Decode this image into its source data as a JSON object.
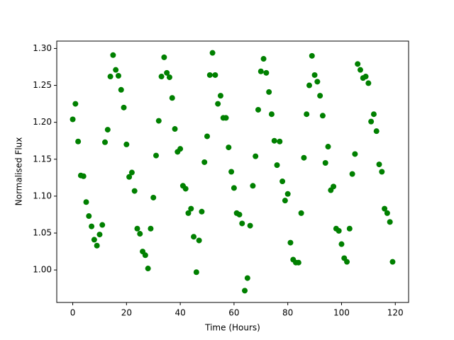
{
  "chart_data": {
    "type": "scatter",
    "x_label": "Time (Hours)",
    "y_label": "Normalised Flux",
    "color": "#008000",
    "x": [
      0,
      1,
      2,
      3,
      4,
      5,
      6,
      7,
      8,
      9,
      10,
      11,
      12,
      13,
      14,
      15,
      16,
      17,
      18,
      19,
      20,
      21,
      22,
      23,
      24,
      25,
      26,
      27,
      28,
      29,
      30,
      31,
      32,
      33,
      34,
      35,
      36,
      37,
      38,
      39,
      40,
      41,
      42,
      43,
      44,
      45,
      46,
      47,
      48,
      49,
      50,
      51,
      52,
      53,
      54,
      55,
      56,
      57,
      58,
      59,
      60,
      61,
      62,
      63,
      64,
      65,
      66,
      67,
      68,
      69,
      70,
      71,
      72,
      73,
      74,
      75,
      76,
      77,
      78,
      79,
      80,
      81,
      82,
      83,
      84,
      85,
      86,
      87,
      88,
      89,
      90,
      91,
      92,
      93,
      94,
      95,
      96,
      97,
      98,
      99,
      100,
      101,
      102,
      103,
      104,
      105,
      106,
      107,
      108,
      109,
      110,
      111,
      112,
      113,
      114,
      115,
      116,
      117,
      118,
      119
    ],
    "values": [
      1.204,
      1.225,
      1.174,
      1.128,
      1.127,
      1.092,
      1.073,
      1.059,
      1.041,
      1.033,
      1.048,
      1.061,
      1.173,
      1.19,
      1.262,
      1.291,
      1.271,
      1.263,
      1.244,
      1.22,
      1.17,
      1.126,
      1.132,
      1.107,
      1.056,
      1.049,
      1.025,
      1.02,
      1.002,
      1.056,
      1.098,
      1.155,
      1.202,
      1.262,
      1.288,
      1.267,
      1.261,
      1.233,
      1.191,
      1.16,
      1.164,
      1.114,
      1.11,
      1.077,
      1.083,
      1.045,
      0.997,
      1.04,
      1.079,
      1.146,
      1.181,
      1.264,
      1.294,
      1.264,
      1.225,
      1.236,
      1.206,
      1.206,
      1.166,
      1.133,
      1.111,
      1.077,
      1.075,
      1.063,
      0.972,
      0.989,
      1.06,
      1.114,
      1.154,
      1.217,
      1.269,
      1.286,
      1.267,
      1.241,
      1.211,
      1.175,
      1.142,
      1.174,
      1.12,
      1.094,
      1.103,
      1.037,
      1.014,
      1.01,
      1.01,
      1.077,
      1.152,
      1.211,
      1.25,
      1.29,
      1.264,
      1.255,
      1.236,
      1.209,
      1.145,
      1.167,
      1.108,
      1.113,
      1.056,
      1.053,
      1.035,
      1.016,
      1.011,
      1.056,
      1.13,
      1.157,
      1.279,
      1.271,
      1.26,
      1.262,
      1.253,
      1.201,
      1.211,
      1.188,
      1.143,
      1.133,
      1.083,
      1.077,
      1.065,
      1.011
    ],
    "xlim": [
      -5.95,
      124.95
    ],
    "ylim": [
      0.956,
      1.31
    ],
    "xticks": [
      0,
      20,
      40,
      60,
      80,
      100,
      120
    ],
    "yticks": [
      {
        "value": 1.0,
        "label": "1.00"
      },
      {
        "value": 1.05,
        "label": "1.05"
      },
      {
        "value": 1.1,
        "label": "1.10"
      },
      {
        "value": 1.15,
        "label": "1.15"
      },
      {
        "value": 1.2,
        "label": "1.20"
      },
      {
        "value": 1.25,
        "label": "1.25"
      },
      {
        "value": 1.3,
        "label": "1.30"
      }
    ]
  }
}
